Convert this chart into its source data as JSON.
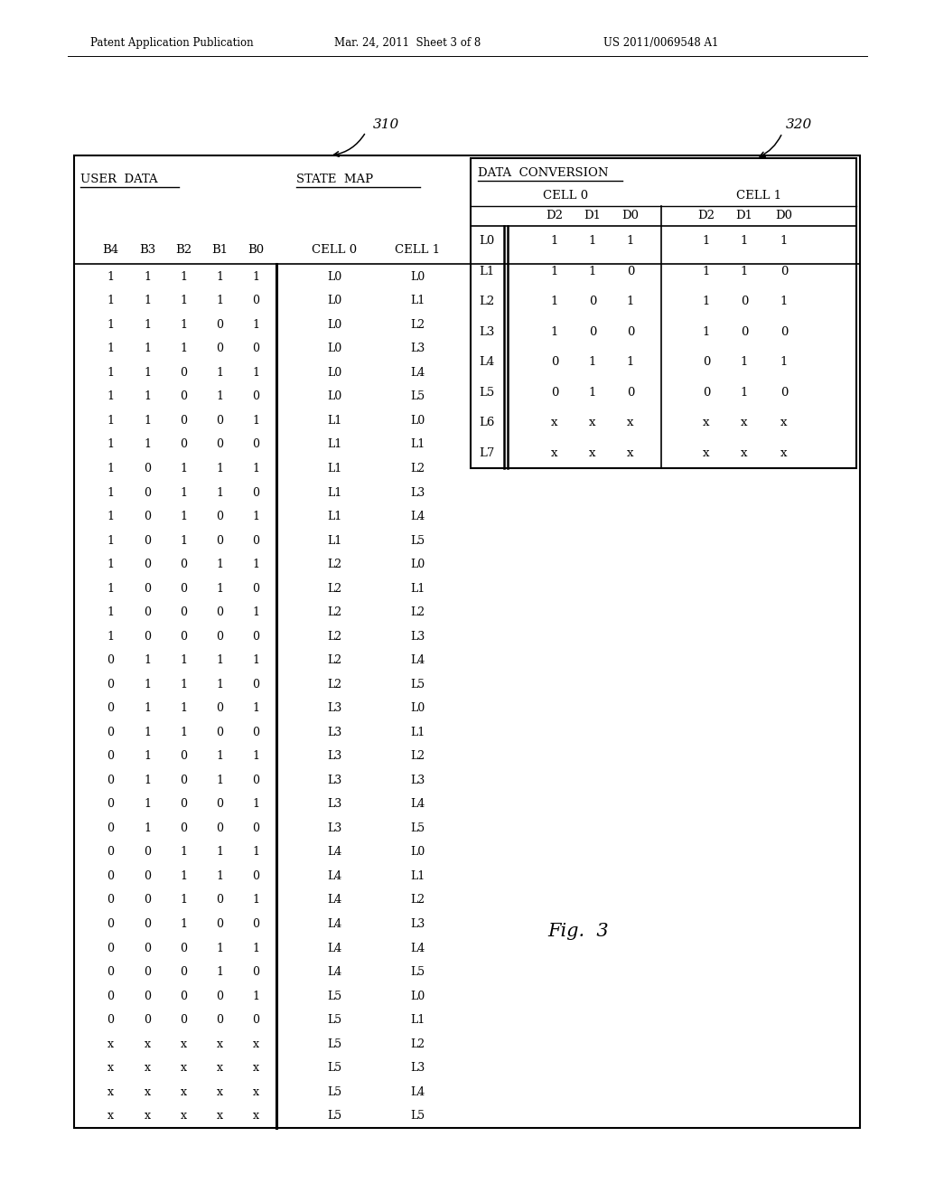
{
  "header_left": "Patent Application Publication",
  "header_mid": "Mar. 24, 2011  Sheet 3 of 8",
  "header_right": "US 2011/0069548 A1",
  "label_310": "310",
  "label_320": "320",
  "fig_label": "Fig.  3",
  "user_data_cols": [
    "B4",
    "B3",
    "B2",
    "B1",
    "B0"
  ],
  "state_map_cols": [
    "CELL 0",
    "CELL 1"
  ],
  "dc_row_labels": [
    "L0",
    "L1",
    "L2",
    "L3",
    "L4",
    "L5",
    "L6",
    "L7"
  ],
  "dc_cell0_data": [
    [
      "1",
      "1",
      "1"
    ],
    [
      "1",
      "1",
      "0"
    ],
    [
      "1",
      "0",
      "1"
    ],
    [
      "1",
      "0",
      "0"
    ],
    [
      "0",
      "1",
      "1"
    ],
    [
      "0",
      "1",
      "0"
    ],
    [
      "x",
      "x",
      "x"
    ],
    [
      "x",
      "x",
      "x"
    ]
  ],
  "dc_cell1_data": [
    [
      "1",
      "1",
      "1"
    ],
    [
      "1",
      "1",
      "0"
    ],
    [
      "1",
      "0",
      "1"
    ],
    [
      "1",
      "0",
      "0"
    ],
    [
      "0",
      "1",
      "1"
    ],
    [
      "0",
      "1",
      "0"
    ],
    [
      "x",
      "x",
      "x"
    ],
    [
      "x",
      "x",
      "x"
    ]
  ],
  "user_data_rows": [
    [
      "1",
      "1",
      "1",
      "1",
      "1"
    ],
    [
      "1",
      "1",
      "1",
      "1",
      "0"
    ],
    [
      "1",
      "1",
      "1",
      "0",
      "1"
    ],
    [
      "1",
      "1",
      "1",
      "0",
      "0"
    ],
    [
      "1",
      "1",
      "0",
      "1",
      "1"
    ],
    [
      "1",
      "1",
      "0",
      "1",
      "0"
    ],
    [
      "1",
      "1",
      "0",
      "0",
      "1"
    ],
    [
      "1",
      "1",
      "0",
      "0",
      "0"
    ],
    [
      "1",
      "0",
      "1",
      "1",
      "1"
    ],
    [
      "1",
      "0",
      "1",
      "1",
      "0"
    ],
    [
      "1",
      "0",
      "1",
      "0",
      "1"
    ],
    [
      "1",
      "0",
      "1",
      "0",
      "0"
    ],
    [
      "1",
      "0",
      "0",
      "1",
      "1"
    ],
    [
      "1",
      "0",
      "0",
      "1",
      "0"
    ],
    [
      "1",
      "0",
      "0",
      "0",
      "1"
    ],
    [
      "1",
      "0",
      "0",
      "0",
      "0"
    ],
    [
      "0",
      "1",
      "1",
      "1",
      "1"
    ],
    [
      "0",
      "1",
      "1",
      "1",
      "0"
    ],
    [
      "0",
      "1",
      "1",
      "0",
      "1"
    ],
    [
      "0",
      "1",
      "1",
      "0",
      "0"
    ],
    [
      "0",
      "1",
      "0",
      "1",
      "1"
    ],
    [
      "0",
      "1",
      "0",
      "1",
      "0"
    ],
    [
      "0",
      "1",
      "0",
      "0",
      "1"
    ],
    [
      "0",
      "1",
      "0",
      "0",
      "0"
    ],
    [
      "0",
      "0",
      "1",
      "1",
      "1"
    ],
    [
      "0",
      "0",
      "1",
      "1",
      "0"
    ],
    [
      "0",
      "0",
      "1",
      "0",
      "1"
    ],
    [
      "0",
      "0",
      "1",
      "0",
      "0"
    ],
    [
      "0",
      "0",
      "0",
      "1",
      "1"
    ],
    [
      "0",
      "0",
      "0",
      "1",
      "0"
    ],
    [
      "0",
      "0",
      "0",
      "0",
      "1"
    ],
    [
      "0",
      "0",
      "0",
      "0",
      "0"
    ],
    [
      "x",
      "x",
      "x",
      "x",
      "x"
    ],
    [
      "x",
      "x",
      "x",
      "x",
      "x"
    ],
    [
      "x",
      "x",
      "x",
      "x",
      "x"
    ],
    [
      "x",
      "x",
      "x",
      "x",
      "x"
    ]
  ],
  "state_map_rows": [
    [
      "L0",
      "L0"
    ],
    [
      "L0",
      "L1"
    ],
    [
      "L0",
      "L2"
    ],
    [
      "L0",
      "L3"
    ],
    [
      "L0",
      "L4"
    ],
    [
      "L0",
      "L5"
    ],
    [
      "L1",
      "L0"
    ],
    [
      "L1",
      "L1"
    ],
    [
      "L1",
      "L2"
    ],
    [
      "L1",
      "L3"
    ],
    [
      "L1",
      "L4"
    ],
    [
      "L1",
      "L5"
    ],
    [
      "L2",
      "L0"
    ],
    [
      "L2",
      "L1"
    ],
    [
      "L2",
      "L2"
    ],
    [
      "L2",
      "L3"
    ],
    [
      "L2",
      "L4"
    ],
    [
      "L2",
      "L5"
    ],
    [
      "L3",
      "L0"
    ],
    [
      "L3",
      "L1"
    ],
    [
      "L3",
      "L2"
    ],
    [
      "L3",
      "L3"
    ],
    [
      "L3",
      "L4"
    ],
    [
      "L3",
      "L5"
    ],
    [
      "L4",
      "L0"
    ],
    [
      "L4",
      "L1"
    ],
    [
      "L4",
      "L2"
    ],
    [
      "L4",
      "L3"
    ],
    [
      "L4",
      "L4"
    ],
    [
      "L4",
      "L5"
    ],
    [
      "L5",
      "L0"
    ],
    [
      "L5",
      "L1"
    ],
    [
      "L5",
      "L2"
    ],
    [
      "L5",
      "L3"
    ],
    [
      "L5",
      "L4"
    ],
    [
      "L5",
      "L5"
    ]
  ]
}
